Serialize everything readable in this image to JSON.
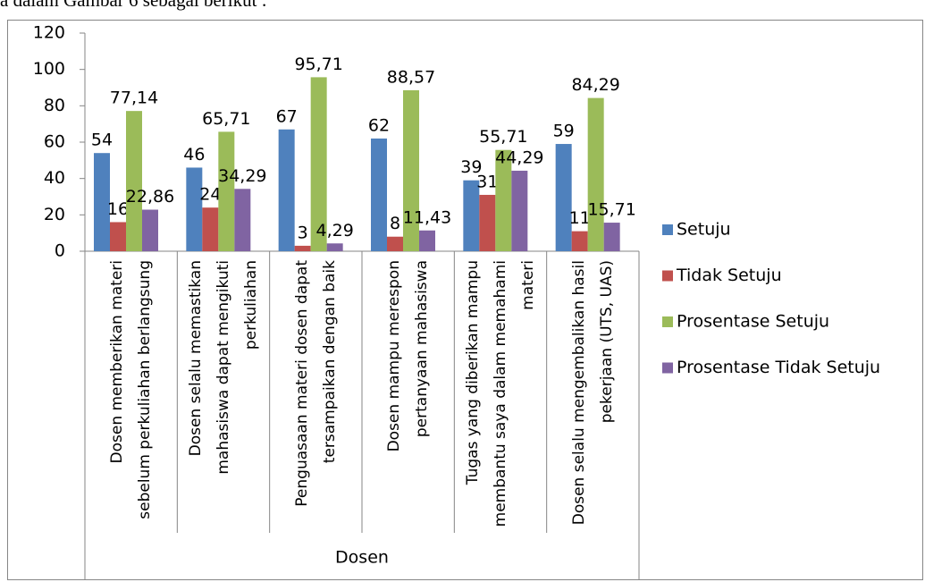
{
  "context_text": "a dalam Gambar 6 sebagai berikut :",
  "chart_data": {
    "type": "bar",
    "xlabel": "Dosen",
    "categories": [
      "Dosen memberikan materi sebelum perkuliahan berlangsung",
      "Dosen selalu memastikan mahasiswa dapat mengikuti perkuliahan",
      "Penguasaan materi dosen dapat tersampaikan dengan baik",
      "Dosen mampu merespon pertanyaan mahasiswa",
      "Tugas yang diberikan mampu membantu saya dalam memahami materi",
      "Dosen selalu mengembalikan hasil pekerjaan (UTS, UAS)"
    ],
    "series": [
      {
        "name": "Setuju",
        "color": "#4f81bd",
        "values": [
          54,
          46,
          67,
          62,
          39,
          59
        ]
      },
      {
        "name": "Tidak Setuju",
        "color": "#c0504d",
        "values": [
          16,
          24,
          3,
          8,
          31,
          11
        ]
      },
      {
        "name": "Prosentase Setuju",
        "color": "#9bbb59",
        "values": [
          77.14,
          65.71,
          95.71,
          88.57,
          55.71,
          84.29
        ],
        "value_labels": [
          "77,14",
          "65,71",
          "95,71",
          "88,57",
          "55,71",
          "84,29"
        ]
      },
      {
        "name": "Prosentase Tidak Setuju",
        "color": "#8064a2",
        "values": [
          22.86,
          34.29,
          4.29,
          11.43,
          44.29,
          15.71
        ],
        "value_labels": [
          "22,86",
          "34,29",
          "4,29",
          "11,43",
          "44,29",
          "15,71"
        ]
      }
    ],
    "ylim": [
      0,
      120
    ],
    "yticks": [
      0,
      20,
      40,
      60,
      80,
      100,
      120
    ],
    "grid": false,
    "legend": "right"
  }
}
